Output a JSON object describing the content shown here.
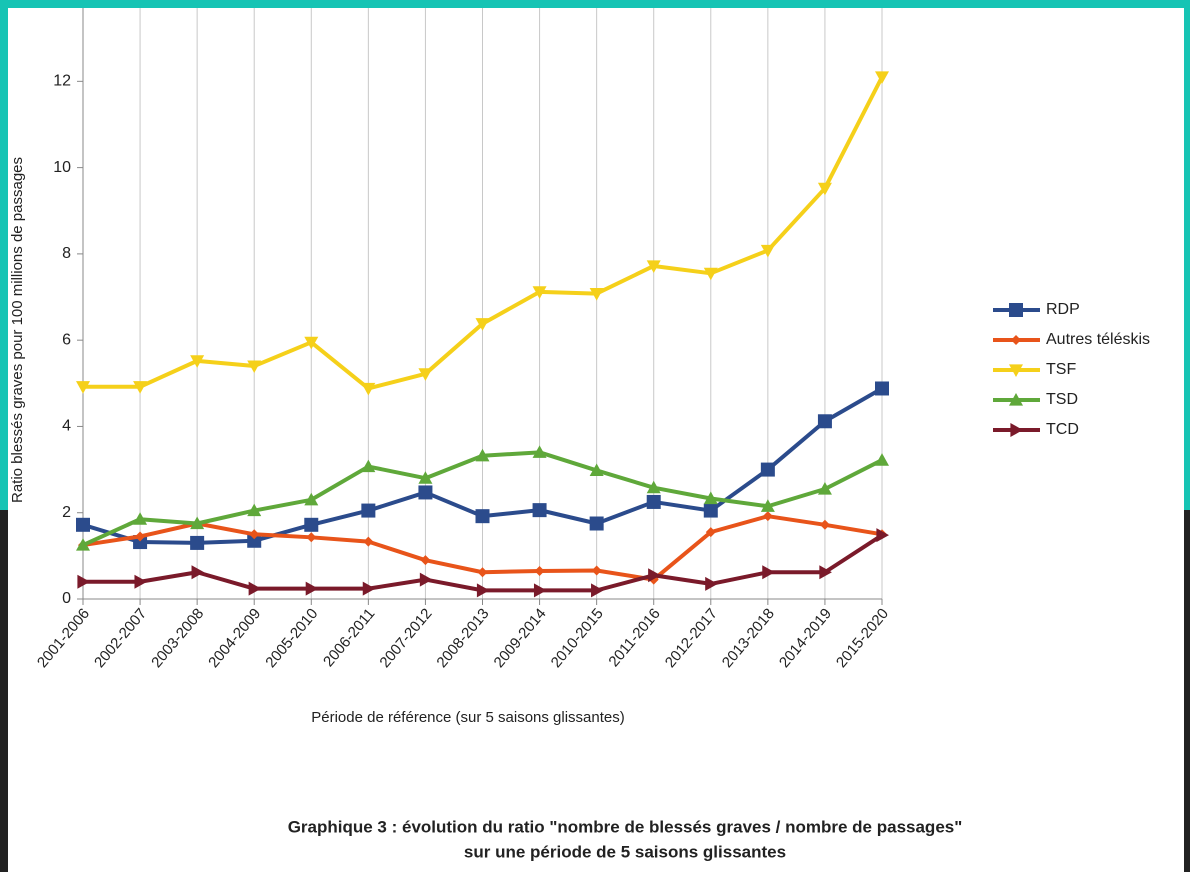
{
  "chart_data": {
    "type": "line",
    "y_label": "Ratio blessés graves pour 100 millions de passages",
    "x_label": "Période de référence (sur 5 saisons glissantes)",
    "caption": [
      "Graphique 3 : évolution du ratio \"nombre de blessés graves / nombre de passages\"",
      "sur une période de 5 saisons glissantes"
    ],
    "categories": [
      "2001-2006",
      "2002-2007",
      "2003-2008",
      "2004-2009",
      "2005-2010",
      "2006-2011",
      "2007-2012",
      "2008-2013",
      "2009-2014",
      "2010-2015",
      "2011-2016",
      "2012-2017",
      "2013-2018",
      "2014-2019",
      "2015-2020"
    ],
    "series": [
      {
        "name": "RDP",
        "color": "#2b4b8c",
        "marker": "square",
        "values": [
          1.72,
          1.32,
          1.3,
          1.35,
          1.72,
          2.05,
          2.47,
          1.92,
          2.06,
          1.75,
          2.25,
          2.05,
          3.0,
          4.12,
          4.88
        ]
      },
      {
        "name": "Autres téléskis",
        "color": "#e8541a",
        "marker": "diamond",
        "values": [
          1.25,
          1.45,
          1.75,
          1.5,
          1.43,
          1.33,
          0.9,
          0.62,
          0.65,
          0.66,
          0.45,
          1.55,
          1.92,
          1.72,
          1.5
        ]
      },
      {
        "name": "TSF",
        "color": "#f5d01a",
        "marker": "triangle-down",
        "values": [
          4.92,
          4.92,
          5.52,
          5.4,
          5.95,
          4.88,
          5.22,
          6.38,
          7.12,
          7.08,
          7.72,
          7.55,
          8.08,
          9.52,
          12.1
        ]
      },
      {
        "name": "TSD",
        "color": "#5fa83a",
        "marker": "triangle-up",
        "values": [
          1.25,
          1.85,
          1.75,
          2.05,
          2.3,
          3.07,
          2.8,
          3.32,
          3.4,
          2.98,
          2.58,
          2.33,
          2.15,
          2.55,
          3.22
        ]
      },
      {
        "name": "TCD",
        "color": "#7a1a2a",
        "marker": "triangle-right",
        "values": [
          0.4,
          0.4,
          0.62,
          0.24,
          0.24,
          0.24,
          0.45,
          0.2,
          0.2,
          0.2,
          0.55,
          0.35,
          0.62,
          0.62,
          1.48
        ]
      }
    ],
    "ylim": [
      0,
      13.7
    ],
    "yticks": [
      0,
      2,
      4,
      6,
      8,
      10,
      12
    ],
    "grid": "x",
    "legend": "right"
  }
}
